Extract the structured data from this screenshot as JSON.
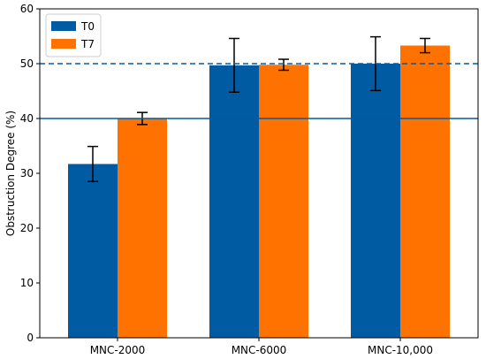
{
  "chart_data": {
    "type": "bar",
    "title": "",
    "xlabel": "",
    "ylabel": "Obstruction Degree (%)",
    "ylim": [
      0,
      60
    ],
    "yticks": [
      0,
      10,
      20,
      30,
      40,
      50,
      60
    ],
    "categories": [
      "MNC-2000",
      "MNC-6000",
      "MNC-10,000"
    ],
    "series": [
      {
        "name": "T0",
        "color": "#005ba3",
        "values": [
          31.7,
          49.7,
          50.0
        ],
        "errors": [
          3.2,
          4.9,
          4.9
        ]
      },
      {
        "name": "T7",
        "color": "#ff7200",
        "values": [
          40.0,
          49.8,
          53.3
        ],
        "errors": [
          1.1,
          1.0,
          1.3
        ]
      }
    ],
    "reference_lines": [
      {
        "y": 40,
        "style": "solid",
        "color": "#005ba3"
      },
      {
        "y": 50,
        "style": "dashed",
        "color": "#005ba3"
      }
    ],
    "legend": {
      "position": "top-left"
    },
    "grid": false
  }
}
